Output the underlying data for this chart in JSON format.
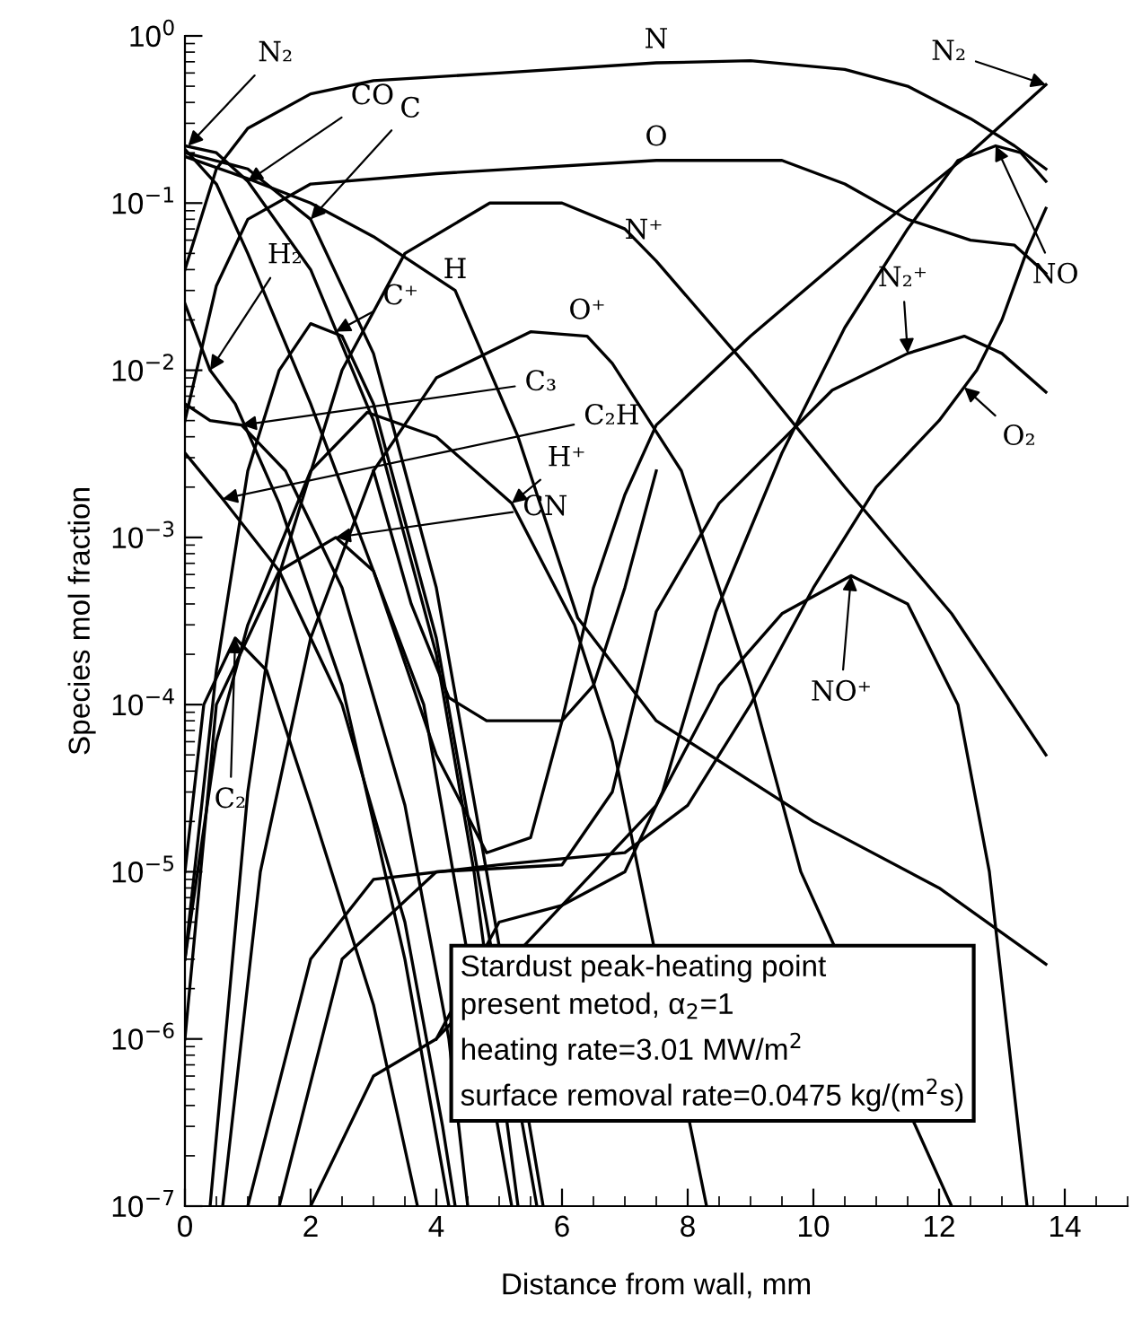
{
  "chart_data": {
    "type": "line",
    "xlabel": "Distance from wall, mm",
    "ylabel": "Species mol fraction",
    "log": "y",
    "xlim": [
      0,
      15
    ],
    "xticks": [
      0,
      2,
      4,
      6,
      8,
      10,
      12,
      14
    ],
    "ylim": [
      1e-07,
      1
    ],
    "yticks": [
      {
        "value": 1e-07,
        "label": "10$^{−7}$"
      },
      {
        "value": 1e-06,
        "label": "10$^{−6}$"
      },
      {
        "value": 1e-05,
        "label": "10$^{−5}$"
      },
      {
        "value": 0.0001,
        "label": "10$^{−4}$"
      },
      {
        "value": 0.001,
        "label": "10$^{−3}$"
      },
      {
        "value": 0.01,
        "label": "10$^{−2}$"
      },
      {
        "value": 0.1,
        "label": "10$^{−1}$"
      },
      {
        "value": 1,
        "label": "10$^{0}$"
      }
    ],
    "grid": false,
    "line_style": "solid",
    "series": [
      {
        "color": "#000000",
        "x": [
          0,
          0.5,
          1,
          2,
          3,
          5,
          7.5,
          9,
          10.5,
          11.5,
          12.5,
          13.2,
          13.7
        ],
        "values": [
          0.04,
          0.16,
          0.28,
          0.45,
          0.54,
          0.6,
          0.69,
          0.71,
          0.63,
          0.5,
          0.32,
          0.22,
          0.16
        ]
      },
      {
        "color": "#000000",
        "x": [
          0,
          0.5,
          1,
          2,
          4,
          7.5,
          9.5,
          10.5,
          11.5,
          12.5,
          13.2,
          13.7
        ],
        "values": [
          0.005,
          0.032,
          0.08,
          0.13,
          0.15,
          0.18,
          0.18,
          0.13,
          0.08,
          0.06,
          0.056,
          0.038
        ]
      },
      {
        "color": "#000000",
        "x": [
          0.4,
          1,
          1.5,
          2.5,
          3.5,
          4.85,
          6,
          7,
          7.5,
          9,
          10.5,
          12.2,
          13.7
        ],
        "values": [
          1e-07,
          3e-05,
          0.0006,
          0.01,
          0.05,
          0.1,
          0.1,
          0.07,
          0.045,
          0.01,
          0.002,
          0.00035,
          5e-05
        ]
      },
      {
        "color": "#000000",
        "x": [
          0.6,
          1.2,
          2,
          3,
          4,
          5.5,
          6.4,
          6.8,
          7.9,
          9,
          9.8,
          12.2
        ],
        "values": [
          1e-07,
          1e-05,
          0.00025,
          0.0025,
          0.009,
          0.017,
          0.016,
          0.011,
          0.0025,
          0.00013,
          1e-05,
          1e-07
        ]
      },
      {
        "color": "#000000",
        "x": [
          0,
          1,
          2,
          3,
          4.3,
          5.3,
          6.25,
          7.5,
          10,
          12,
          13.7
        ],
        "values": [
          0.19,
          0.14,
          0.1,
          0.063,
          0.03,
          0.004,
          0.00033,
          8e-05,
          2e-05,
          8e-06,
          2.8e-06
        ]
      },
      {
        "color": "#000000",
        "x": [
          0,
          0.5,
          1,
          2,
          2.9,
          4,
          5.2,
          6.2,
          6.8,
          8.3
        ],
        "values": [
          3e-06,
          6e-05,
          0.0003,
          0.0025,
          0.0056,
          0.004,
          0.0016,
          0.0003,
          6e-05,
          1e-07
        ]
      },
      {
        "color": "#000000",
        "x": [
          3.0,
          3.6,
          4.2,
          4.8,
          6.0,
          6.5,
          7.0,
          7.5
        ],
        "values": [
          0.0025,
          0.0004,
          0.00011,
          8e-05,
          8e-05,
          0.00013,
          0.0005,
          0.0025
        ]
      },
      {
        "color": "#000000",
        "x": [
          0,
          0.5,
          1,
          2,
          3,
          4,
          4.8,
          5.5,
          6,
          6.5,
          7,
          7.5,
          9,
          11,
          12.5,
          13.7
        ],
        "values": [
          0.21,
          0.13,
          0.05,
          0.0063,
          0.00063,
          5e-05,
          1.3e-05,
          1.6e-05,
          8e-05,
          0.0005,
          0.0018,
          0.0047,
          0.016,
          0.07,
          0.2,
          0.51
        ]
      },
      {
        "color": "#000000",
        "x": [
          4,
          5,
          6,
          7,
          7.6,
          8.45,
          9.5,
          10.5,
          11.5,
          12.3,
          12.9,
          13.3,
          13.7
        ],
        "values": [
          1e-06,
          5e-06,
          6.3e-06,
          1e-05,
          3e-05,
          0.00036,
          0.0032,
          0.018,
          0.07,
          0.18,
          0.22,
          0.2,
          0.135
        ]
      },
      {
        "color": "#000000",
        "x": [
          1.5,
          2.5,
          4,
          6,
          6.8,
          7.5,
          8.5,
          10.3,
          11.5,
          12.4,
          13,
          13.7
        ],
        "values": [
          1e-07,
          3e-06,
          1e-05,
          1.1e-05,
          3e-05,
          0.00036,
          0.0016,
          0.0076,
          0.0126,
          0.016,
          0.0126,
          0.0074
        ]
      },
      {
        "color": "#000000",
        "x": [
          1,
          2,
          3,
          5,
          7,
          8,
          9,
          10,
          11,
          12,
          12.6,
          13,
          13.4,
          13.7
        ],
        "values": [
          1e-07,
          3e-06,
          9e-06,
          1.1e-05,
          1.3e-05,
          2.5e-05,
          0.0001,
          0.0005,
          0.002,
          0.005,
          0.01,
          0.02,
          0.052,
          0.093
        ]
      },
      {
        "color": "#000000",
        "x": [
          2,
          3,
          4,
          7.5,
          8.5,
          9.5,
          10.6,
          11.5,
          12.3,
          12.8,
          13.1,
          13.4
        ],
        "values": [
          1e-07,
          6e-07,
          1e-06,
          2.5e-05,
          0.00013,
          0.00035,
          0.00059,
          0.0004,
          0.0001,
          1e-05,
          1e-06,
          1e-07
        ]
      },
      {
        "color": "#000000",
        "x": [
          0,
          0.5,
          1,
          2,
          3,
          4,
          4.6,
          5.3
        ],
        "values": [
          0.22,
          0.2,
          0.135,
          0.04,
          0.005,
          0.0002,
          1e-05,
          1e-07
        ]
      },
      {
        "color": "#000000",
        "x": [
          0,
          1,
          2,
          3,
          4,
          4.8,
          5.7
        ],
        "values": [
          0.2,
          0.16,
          0.08,
          0.0126,
          0.0005,
          1e-05,
          1e-07
        ]
      },
      {
        "color": "#000000",
        "x": [
          0,
          0.4,
          0.8,
          1.5,
          2.5,
          3.5,
          4.2
        ],
        "values": [
          0.025,
          0.01,
          0.0063,
          0.0016,
          0.00013,
          3e-06,
          1e-07
        ]
      },
      {
        "color": "#000000",
        "x": [
          0,
          0.5,
          1,
          1.5,
          2,
          2.5,
          3,
          4,
          5.6
        ],
        "values": [
          3e-06,
          0.00016,
          0.0025,
          0.01,
          0.019,
          0.016,
          0.0063,
          0.00025,
          1e-07
        ]
      },
      {
        "color": "#000000",
        "x": [
          0,
          0.4,
          0.9,
          1.6,
          2.5,
          3.5,
          4.2,
          4.5
        ],
        "values": [
          0.0063,
          0.005,
          0.0047,
          0.0025,
          0.0005,
          2.5e-05,
          1e-06,
          1e-07
        ]
      },
      {
        "color": "#000000",
        "x": [
          0,
          0.6,
          1.5,
          2.5,
          3.5,
          4.1,
          4.3
        ],
        "values": [
          0.0032,
          0.0017,
          0.00063,
          0.0001,
          5e-06,
          3e-07,
          1e-07
        ]
      },
      {
        "color": "#000000",
        "x": [
          0,
          0.5,
          1,
          1.5,
          2.4,
          3,
          3.8,
          5.2
        ],
        "values": [
          1e-06,
          0.0001,
          0.00025,
          0.00063,
          0.001,
          0.00063,
          0.0001,
          1e-07
        ]
      },
      {
        "color": "#000000",
        "x": [
          0,
          0.3,
          0.8,
          1.3,
          2,
          3,
          3.7
        ],
        "values": [
          1e-05,
          0.0001,
          0.00025,
          0.00016,
          2.5e-05,
          1.6e-06,
          1e-07
        ]
      }
    ],
    "annotations": [
      {
        "text": "N₂",
        "x": 0.05,
        "y": 0.22
      },
      {
        "text": "CO",
        "x": 1.0,
        "y": 0.135
      },
      {
        "text": "C",
        "x": 2.0,
        "y": 0.08
      },
      {
        "text": "H₂",
        "x": 0.4,
        "y": 0.01
      },
      {
        "text": "C⁺",
        "x": 2.4,
        "y": 0.017
      },
      {
        "text": "H",
        "x": 4.3,
        "y": 0.03
      },
      {
        "text": "N",
        "x": 7.5,
        "y": 0.69
      },
      {
        "text": "O",
        "x": 7.5,
        "y": 0.18
      },
      {
        "text": "N⁺",
        "x": 7.5,
        "y": 0.045
      },
      {
        "text": "O⁺",
        "x": 6.4,
        "y": 0.016
      },
      {
        "text": "C₃",
        "x": 0.9,
        "y": 0.0047
      },
      {
        "text": "C₂H",
        "x": 0.6,
        "y": 0.0017
      },
      {
        "text": "H⁺",
        "x": 5.2,
        "y": 0.0016
      },
      {
        "text": "CN",
        "x": 2.4,
        "y": 0.001
      },
      {
        "text": "C₂",
        "x": 0.8,
        "y": 0.00025
      },
      {
        "text": "N₂",
        "x": 13.7,
        "y": 0.51
      },
      {
        "text": "NO",
        "x": 12.9,
        "y": 0.22
      },
      {
        "text": "N₂⁺",
        "x": 11.5,
        "y": 0.0126
      },
      {
        "text": "O₂",
        "x": 12.4,
        "y": 0.0079
      },
      {
        "text": "NO⁺",
        "x": 10.6,
        "y": 0.00059
      },
      "Stardust peak-heating point",
      "present metod, α$_{2}$=1",
      "heating rate=3.01 MW/m$^{2}$",
      "surface removal rate=0.0475 kg/(m$^{2}$s)"
    ]
  }
}
